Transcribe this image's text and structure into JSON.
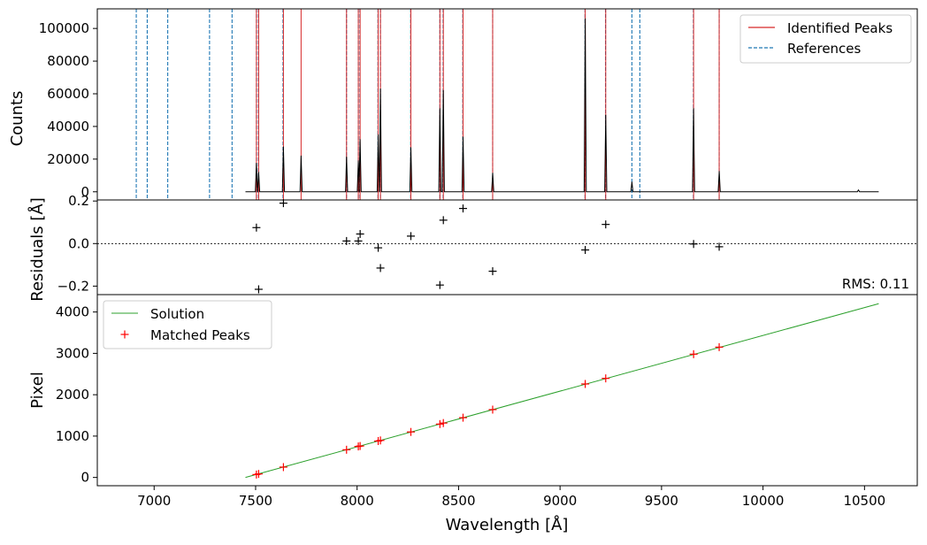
{
  "chart_data": [
    {
      "type": "line",
      "panel": "spectrum",
      "ylabel": "Counts",
      "xlim": [
        6720,
        10760
      ],
      "ylim": [
        -5000,
        112000
      ],
      "yticks": [
        0,
        20000,
        40000,
        60000,
        80000,
        100000
      ],
      "ytick_labels": [
        "0",
        "20000",
        "40000",
        "60000",
        "80000",
        "100000"
      ],
      "legend": {
        "placement": "top-right",
        "entries": [
          {
            "label": "Identified Peaks",
            "color": "#d62728",
            "style": "solid"
          },
          {
            "label": "References",
            "color": "#1f77b4",
            "style": "dashed"
          }
        ]
      },
      "spectrum_range": [
        7450,
        10570
      ],
      "peaks": [
        {
          "x": 7504,
          "y": 17500
        },
        {
          "x": 7515,
          "y": 12000
        },
        {
          "x": 7637,
          "y": 27500
        },
        {
          "x": 7724,
          "y": 22000
        },
        {
          "x": 7948,
          "y": 21500
        },
        {
          "x": 8006,
          "y": 19000
        },
        {
          "x": 8015,
          "y": 32000
        },
        {
          "x": 8104,
          "y": 35000
        },
        {
          "x": 8115,
          "y": 63000
        },
        {
          "x": 8265,
          "y": 27000
        },
        {
          "x": 8408,
          "y": 51000
        },
        {
          "x": 8425,
          "y": 62000
        },
        {
          "x": 8522,
          "y": 33500
        },
        {
          "x": 8668,
          "y": 11500
        },
        {
          "x": 9124,
          "y": 106000
        },
        {
          "x": 9225,
          "y": 47000
        },
        {
          "x": 9354,
          "y": 6000
        },
        {
          "x": 9658,
          "y": 51000
        },
        {
          "x": 9784,
          "y": 12500
        },
        {
          "x": 10470,
          "y": 1200
        }
      ],
      "identified_peaks": [
        7504,
        7515,
        7637,
        7724,
        7948,
        8006,
        8015,
        8104,
        8115,
        8265,
        8408,
        8425,
        8522,
        8668,
        9124,
        9225,
        9658,
        9784
      ],
      "references": [
        6912,
        6966,
        7067,
        7273,
        7384,
        7504,
        7514,
        7635,
        7948,
        8006,
        8014,
        8103,
        8115,
        8264,
        8408,
        8424,
        8521,
        8668,
        9123,
        9224,
        9354,
        9393,
        9657,
        9784
      ]
    },
    {
      "type": "scatter",
      "panel": "residuals",
      "ylabel": "Residuals [Å]",
      "xlim": [
        6720,
        10760
      ],
      "ylim": [
        -0.24,
        0.205
      ],
      "yticks": [
        -0.2,
        0.0,
        0.2
      ],
      "ytick_labels": [
        "−0.2",
        "0.0",
        "0.2"
      ],
      "zero_line": true,
      "annotation": "RMS: 0.11",
      "x": [
        7504,
        7515,
        7637,
        7948,
        8006,
        8015,
        8104,
        8115,
        8265,
        8408,
        8425,
        8522,
        8668,
        9124,
        9225,
        9658,
        9784
      ],
      "y": [
        0.075,
        -0.215,
        0.19,
        0.012,
        0.012,
        0.045,
        -0.02,
        -0.115,
        0.035,
        -0.195,
        0.11,
        0.165,
        -0.13,
        -0.03,
        0.09,
        -0.002,
        -0.015
      ]
    },
    {
      "type": "line",
      "panel": "solution",
      "xlabel": "Wavelength [Å]",
      "ylabel": "Pixel",
      "xlim": [
        6720,
        10760
      ],
      "ylim": [
        -200,
        4420
      ],
      "xticks": [
        7000,
        7500,
        8000,
        8500,
        9000,
        9500,
        10000,
        10500
      ],
      "xtick_labels": [
        "7000",
        "7500",
        "8000",
        "8500",
        "9000",
        "9500",
        "10000",
        "10500"
      ],
      "yticks": [
        0,
        1000,
        2000,
        3000,
        4000
      ],
      "ytick_labels": [
        "0",
        "1000",
        "2000",
        "3000",
        "4000"
      ],
      "legend": {
        "placement": "top-left",
        "entries": [
          {
            "label": "Solution",
            "color": "#2ca02c",
            "style": "line"
          },
          {
            "label": "Matched Peaks",
            "color": "#ff0000",
            "style": "plus"
          }
        ]
      },
      "series": [
        {
          "name": "Solution",
          "x": [
            7450,
            10570
          ],
          "y": [
            0,
            4200
          ]
        },
        {
          "name": "Matched Peaks",
          "x": [
            7504,
            7515,
            7637,
            7948,
            8006,
            8015,
            8104,
            8115,
            8265,
            8408,
            8425,
            8522,
            8668,
            9124,
            9225,
            9658,
            9784
          ],
          "y": [
            70,
            85,
            250,
            670,
            750,
            760,
            880,
            895,
            1100,
            1290,
            1315,
            1445,
            1640,
            2260,
            2395,
            2980,
            3150
          ]
        }
      ]
    }
  ]
}
